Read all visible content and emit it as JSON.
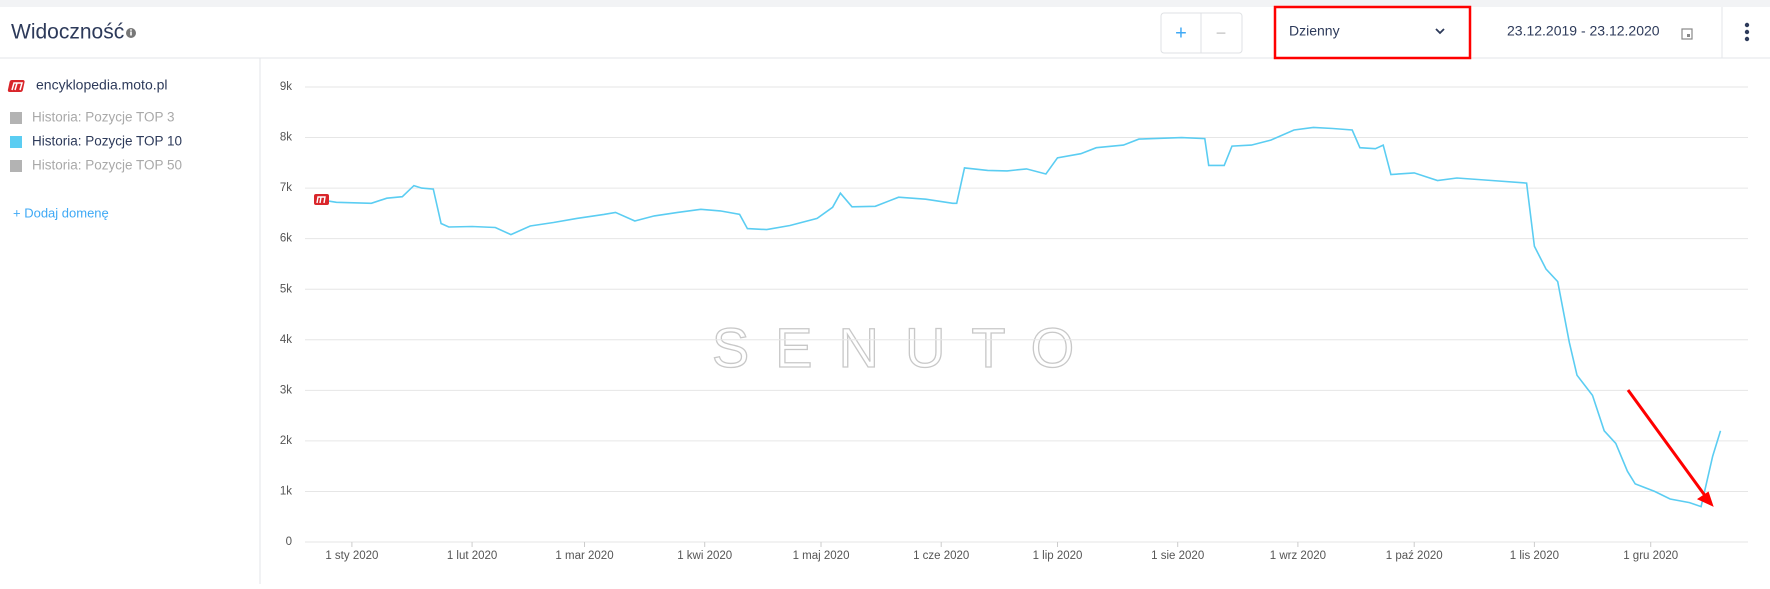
{
  "header": {
    "title": "Widoczność",
    "zoom_in": "+",
    "zoom_out": "−",
    "interval": "Dzienny",
    "date_range": "23.12.2019 - 23.12.2020"
  },
  "sidebar": {
    "domain": "encyklopedia.moto.pl",
    "add_domain": "+ Dodaj domenę"
  },
  "chart_data": {
    "type": "line",
    "watermark": "SENUTO",
    "x": [
      "2019-12-23",
      "2019-12-28",
      "2020-01-06",
      "2020-01-10",
      "2020-01-14",
      "2020-01-17",
      "2020-01-19",
      "2020-01-22",
      "2020-01-24",
      "2020-01-26",
      "2020-02-01",
      "2020-02-07",
      "2020-02-11",
      "2020-02-16",
      "2020-02-22",
      "2020-02-28",
      "2020-03-06",
      "2020-03-09",
      "2020-03-14",
      "2020-03-19",
      "2020-03-25",
      "2020-03-31",
      "2020-04-05",
      "2020-04-10",
      "2020-04-12",
      "2020-04-17",
      "2020-04-23",
      "2020-04-30",
      "2020-05-04",
      "2020-05-06",
      "2020-05-09",
      "2020-05-15",
      "2020-05-21",
      "2020-05-28",
      "2020-06-04",
      "2020-06-05",
      "2020-06-07",
      "2020-06-13",
      "2020-06-18",
      "2020-06-23",
      "2020-06-28",
      "2020-07-01",
      "2020-07-07",
      "2020-07-11",
      "2020-07-18",
      "2020-07-22",
      "2020-08-02",
      "2020-08-08",
      "2020-08-09",
      "2020-08-13",
      "2020-08-15",
      "2020-08-20",
      "2020-08-25",
      "2020-08-31",
      "2020-09-05",
      "2020-09-10",
      "2020-09-15",
      "2020-09-17",
      "2020-09-21",
      "2020-09-23",
      "2020-09-25",
      "2020-10-01",
      "2020-10-07",
      "2020-10-12",
      "2020-10-21",
      "2020-10-30",
      "2020-11-01",
      "2020-11-04",
      "2020-11-07",
      "2020-11-10",
      "2020-11-12",
      "2020-11-16",
      "2020-11-19",
      "2020-11-22",
      "2020-11-25",
      "2020-11-27",
      "2020-12-02",
      "2020-12-06",
      "2020-12-11",
      "2020-12-14",
      "2020-12-17",
      "2020-12-19"
    ],
    "series": [
      {
        "name": "Historia: Pozycje TOP 3",
        "color": "#b3b3b3",
        "visible": false
      },
      {
        "name": "Historia: Pozycje TOP 10",
        "color": "#5bcdf2",
        "visible": true,
        "values": [
          6780,
          6720,
          6700,
          6800,
          6830,
          7050,
          7000,
          6980,
          6300,
          6230,
          6240,
          6220,
          6080,
          6250,
          6320,
          6400,
          6480,
          6520,
          6350,
          6450,
          6520,
          6580,
          6550,
          6480,
          6200,
          6180,
          6260,
          6400,
          6620,
          6900,
          6630,
          6640,
          6820,
          6780,
          6700,
          6700,
          7400,
          7350,
          7340,
          7380,
          7280,
          7600,
          7680,
          7800,
          7850,
          7970,
          8000,
          7980,
          7450,
          7450,
          7830,
          7850,
          7950,
          8150,
          8200,
          8180,
          8150,
          7800,
          7780,
          7850,
          7270,
          7300,
          7150,
          7200,
          7150,
          7100,
          5850,
          5400,
          5150,
          3950,
          3300,
          2900,
          2200,
          1950,
          1400,
          1150,
          1000,
          850,
          780,
          700,
          1700,
          2200
        ]
      },
      {
        "name": "Historia: Pozycje TOP 50",
        "color": "#b3b3b3",
        "visible": false
      }
    ],
    "xlim": [
      "2019-12-23",
      "2020-12-23"
    ],
    "xticks": [
      {
        "value": "2020-01-01",
        "label": "1 sty 2020"
      },
      {
        "value": "2020-02-01",
        "label": "1 lut 2020"
      },
      {
        "value": "2020-03-01",
        "label": "1 mar 2020"
      },
      {
        "value": "2020-04-01",
        "label": "1 kwi 2020"
      },
      {
        "value": "2020-05-01",
        "label": "1 maj 2020"
      },
      {
        "value": "2020-06-01",
        "label": "1 cze 2020"
      },
      {
        "value": "2020-07-01",
        "label": "1 lip 2020"
      },
      {
        "value": "2020-08-01",
        "label": "1 sie 2020"
      },
      {
        "value": "2020-09-01",
        "label": "1 wrz 2020"
      },
      {
        "value": "2020-10-01",
        "label": "1 paź 2020"
      },
      {
        "value": "2020-11-01",
        "label": "1 lis 2020"
      },
      {
        "value": "2020-12-01",
        "label": "1 gru 2020"
      }
    ],
    "ylim": [
      0,
      9000
    ],
    "yticks": [
      0,
      {
        "value": 1000,
        "label": "1k"
      },
      {
        "value": 2000,
        "label": "2k"
      },
      {
        "value": 3000,
        "label": "3k"
      },
      {
        "value": 4000,
        "label": "4k"
      },
      {
        "value": 5000,
        "label": "5k"
      },
      {
        "value": 6000,
        "label": "6k"
      },
      {
        "value": 7000,
        "label": "7k"
      },
      {
        "value": 8000,
        "label": "8k"
      },
      {
        "value": 9000,
        "label": "9k"
      }
    ],
    "grid": true
  }
}
